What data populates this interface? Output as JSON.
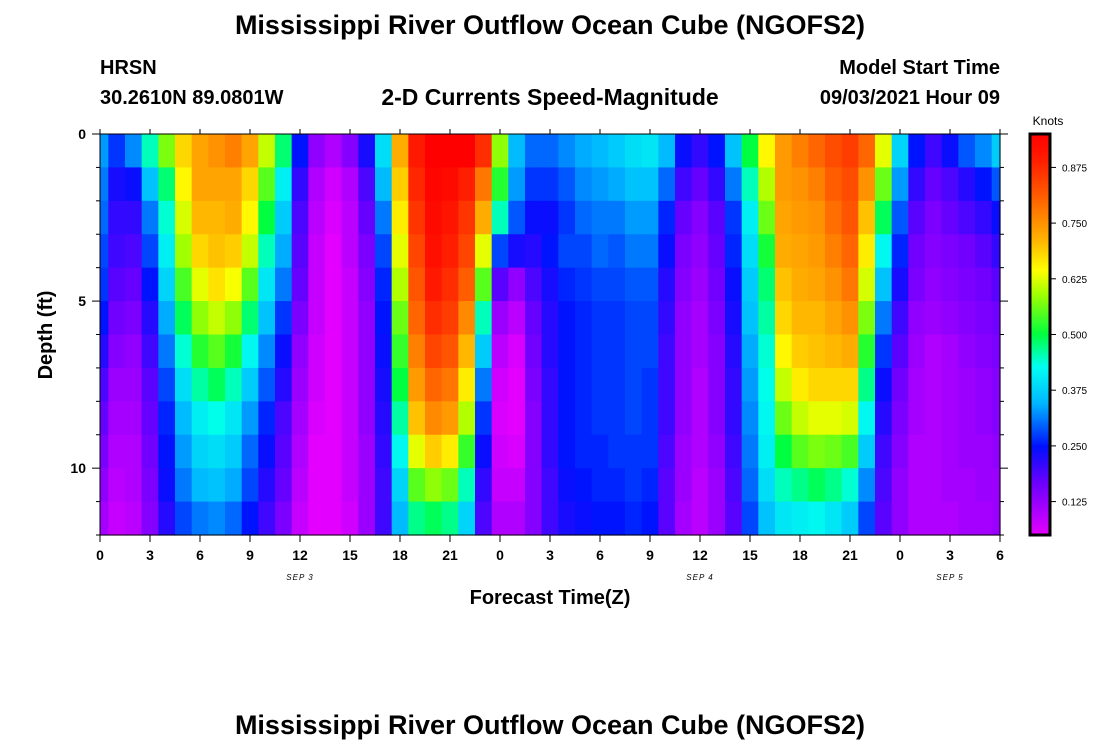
{
  "header": {
    "title": "Mississippi River Outflow Ocean Cube (NGOFS2)",
    "station": "HRSN",
    "coords": "30.2610N  89.0801W",
    "subtitle": "2-D Currents Speed-Magnitude",
    "model_start_label": "Model Start Time",
    "model_start_value": "09/03/2021 Hour 09"
  },
  "footer": {
    "title": "Mississippi River Outflow Ocean Cube (NGOFS2)"
  },
  "chart_data": {
    "type": "heatmap",
    "xlabel": "Forecast Time(Z)",
    "ylabel": "Depth (ft)",
    "x_range": [
      0,
      54
    ],
    "ylim": [
      0,
      12
    ],
    "y_inverted": true,
    "x_ticks": [
      {
        "hour": 0,
        "label": "0"
      },
      {
        "hour": 3,
        "label": "3"
      },
      {
        "hour": 6,
        "label": "6"
      },
      {
        "hour": 9,
        "label": "9"
      },
      {
        "hour": 12,
        "label": "12"
      },
      {
        "hour": 15,
        "label": "15"
      },
      {
        "hour": 18,
        "label": "18"
      },
      {
        "hour": 21,
        "label": "21"
      },
      {
        "hour": 24,
        "label": "0"
      },
      {
        "hour": 27,
        "label": "3"
      },
      {
        "hour": 30,
        "label": "6"
      },
      {
        "hour": 33,
        "label": "9"
      },
      {
        "hour": 36,
        "label": "12"
      },
      {
        "hour": 39,
        "label": "15"
      },
      {
        "hour": 42,
        "label": "18"
      },
      {
        "hour": 45,
        "label": "21"
      },
      {
        "hour": 48,
        "label": "0"
      },
      {
        "hour": 51,
        "label": "3"
      },
      {
        "hour": 54,
        "label": "6"
      }
    ],
    "y_ticks": [
      0,
      5,
      10
    ],
    "date_labels": [
      {
        "hour": 12,
        "label": "SEP 3"
      },
      {
        "hour": 36,
        "label": "SEP 4"
      },
      {
        "hour": 51,
        "label": "SEP 5"
      }
    ],
    "colorbar": {
      "unit": "Knots",
      "range": [
        0.05,
        0.95
      ],
      "ticks": [
        "0.125",
        "0.250",
        "0.375",
        "0.500",
        "0.625",
        "0.750",
        "0.875"
      ]
    },
    "depth_bins": 12,
    "time_step_hours": 1,
    "speed_knots_by_depth": [
      [
        0.33,
        0.27,
        0.32,
        0.45,
        0.57,
        0.68,
        0.73,
        0.75,
        0.77,
        0.73,
        0.61,
        0.48,
        0.25,
        0.13,
        0.1,
        0.14,
        0.23,
        0.39,
        0.72,
        0.9,
        0.95,
        0.95,
        0.95,
        0.87,
        0.58,
        0.35,
        0.3,
        0.3,
        0.32,
        0.34,
        0.35,
        0.37,
        0.39,
        0.4,
        0.35,
        0.24,
        0.21,
        0.25,
        0.36,
        0.5,
        0.65,
        0.74,
        0.77,
        0.8,
        0.83,
        0.85,
        0.8,
        0.63,
        0.38,
        0.25,
        0.2,
        0.24,
        0.29,
        0.32,
        0.37
      ],
      [
        0.31,
        0.23,
        0.24,
        0.36,
        0.48,
        0.65,
        0.73,
        0.73,
        0.73,
        0.68,
        0.55,
        0.41,
        0.21,
        0.1,
        0.07,
        0.1,
        0.19,
        0.35,
        0.69,
        0.88,
        0.94,
        0.93,
        0.89,
        0.78,
        0.52,
        0.33,
        0.27,
        0.27,
        0.29,
        0.32,
        0.33,
        0.34,
        0.36,
        0.36,
        0.3,
        0.2,
        0.17,
        0.21,
        0.31,
        0.45,
        0.6,
        0.74,
        0.75,
        0.77,
        0.81,
        0.83,
        0.75,
        0.56,
        0.33,
        0.21,
        0.17,
        0.19,
        0.22,
        0.25,
        0.29
      ],
      [
        0.3,
        0.21,
        0.21,
        0.31,
        0.44,
        0.62,
        0.71,
        0.71,
        0.72,
        0.65,
        0.5,
        0.37,
        0.19,
        0.09,
        0.06,
        0.09,
        0.17,
        0.31,
        0.66,
        0.86,
        0.93,
        0.91,
        0.86,
        0.72,
        0.45,
        0.29,
        0.24,
        0.24,
        0.27,
        0.3,
        0.31,
        0.31,
        0.33,
        0.33,
        0.26,
        0.17,
        0.14,
        0.18,
        0.27,
        0.41,
        0.56,
        0.73,
        0.74,
        0.75,
        0.79,
        0.82,
        0.7,
        0.49,
        0.29,
        0.18,
        0.15,
        0.17,
        0.19,
        0.21,
        0.24
      ],
      [
        0.28,
        0.2,
        0.19,
        0.28,
        0.41,
        0.59,
        0.68,
        0.7,
        0.69,
        0.61,
        0.45,
        0.34,
        0.18,
        0.08,
        0.05,
        0.09,
        0.15,
        0.28,
        0.63,
        0.84,
        0.92,
        0.89,
        0.84,
        0.63,
        0.28,
        0.23,
        0.22,
        0.25,
        0.28,
        0.28,
        0.3,
        0.29,
        0.31,
        0.31,
        0.24,
        0.15,
        0.13,
        0.17,
        0.26,
        0.39,
        0.51,
        0.72,
        0.73,
        0.74,
        0.77,
        0.8,
        0.66,
        0.42,
        0.26,
        0.16,
        0.14,
        0.15,
        0.16,
        0.18,
        0.21
      ],
      [
        0.27,
        0.18,
        0.17,
        0.25,
        0.38,
        0.54,
        0.63,
        0.67,
        0.64,
        0.55,
        0.4,
        0.31,
        0.17,
        0.08,
        0.05,
        0.08,
        0.14,
        0.26,
        0.6,
        0.82,
        0.9,
        0.87,
        0.81,
        0.55,
        0.18,
        0.13,
        0.19,
        0.23,
        0.26,
        0.27,
        0.28,
        0.28,
        0.29,
        0.29,
        0.22,
        0.14,
        0.12,
        0.16,
        0.24,
        0.37,
        0.48,
        0.7,
        0.72,
        0.73,
        0.75,
        0.78,
        0.62,
        0.36,
        0.23,
        0.15,
        0.13,
        0.14,
        0.15,
        0.16,
        0.18
      ],
      [
        0.25,
        0.16,
        0.15,
        0.22,
        0.34,
        0.49,
        0.58,
        0.61,
        0.58,
        0.48,
        0.36,
        0.27,
        0.15,
        0.08,
        0.05,
        0.08,
        0.13,
        0.25,
        0.56,
        0.8,
        0.87,
        0.85,
        0.76,
        0.45,
        0.12,
        0.09,
        0.17,
        0.22,
        0.25,
        0.26,
        0.27,
        0.27,
        0.28,
        0.28,
        0.21,
        0.13,
        0.11,
        0.15,
        0.23,
        0.36,
        0.46,
        0.68,
        0.71,
        0.71,
        0.73,
        0.75,
        0.57,
        0.31,
        0.2,
        0.13,
        0.12,
        0.13,
        0.14,
        0.15,
        0.16
      ],
      [
        0.22,
        0.14,
        0.13,
        0.2,
        0.31,
        0.44,
        0.52,
        0.55,
        0.51,
        0.42,
        0.32,
        0.24,
        0.13,
        0.07,
        0.05,
        0.08,
        0.13,
        0.24,
        0.53,
        0.77,
        0.84,
        0.82,
        0.71,
        0.37,
        0.09,
        0.06,
        0.16,
        0.22,
        0.25,
        0.26,
        0.27,
        0.27,
        0.28,
        0.28,
        0.2,
        0.13,
        0.11,
        0.14,
        0.22,
        0.34,
        0.44,
        0.65,
        0.69,
        0.7,
        0.71,
        0.72,
        0.52,
        0.27,
        0.18,
        0.12,
        0.1,
        0.11,
        0.13,
        0.14,
        0.15
      ],
      [
        0.19,
        0.12,
        0.12,
        0.18,
        0.28,
        0.39,
        0.46,
        0.49,
        0.45,
        0.37,
        0.29,
        0.22,
        0.12,
        0.07,
        0.05,
        0.08,
        0.13,
        0.23,
        0.5,
        0.74,
        0.8,
        0.78,
        0.66,
        0.31,
        0.07,
        0.04,
        0.15,
        0.21,
        0.25,
        0.26,
        0.27,
        0.27,
        0.28,
        0.27,
        0.2,
        0.13,
        0.1,
        0.14,
        0.21,
        0.33,
        0.43,
        0.61,
        0.66,
        0.68,
        0.68,
        0.68,
        0.47,
        0.24,
        0.16,
        0.11,
        0.1,
        0.11,
        0.12,
        0.13,
        0.14
      ],
      [
        0.17,
        0.11,
        0.11,
        0.17,
        0.26,
        0.35,
        0.41,
        0.43,
        0.4,
        0.33,
        0.26,
        0.19,
        0.11,
        0.06,
        0.05,
        0.08,
        0.13,
        0.22,
        0.46,
        0.7,
        0.76,
        0.74,
        0.6,
        0.27,
        0.06,
        0.05,
        0.14,
        0.21,
        0.25,
        0.26,
        0.27,
        0.27,
        0.28,
        0.27,
        0.2,
        0.13,
        0.1,
        0.14,
        0.21,
        0.32,
        0.42,
        0.56,
        0.61,
        0.63,
        0.63,
        0.62,
        0.42,
        0.22,
        0.15,
        0.11,
        0.1,
        0.11,
        0.12,
        0.13,
        0.14
      ],
      [
        0.15,
        0.1,
        0.1,
        0.16,
        0.25,
        0.33,
        0.38,
        0.39,
        0.37,
        0.3,
        0.24,
        0.18,
        0.1,
        0.05,
        0.04,
        0.08,
        0.12,
        0.21,
        0.42,
        0.63,
        0.69,
        0.66,
        0.53,
        0.24,
        0.07,
        0.06,
        0.14,
        0.21,
        0.25,
        0.26,
        0.26,
        0.27,
        0.27,
        0.27,
        0.19,
        0.12,
        0.1,
        0.13,
        0.2,
        0.31,
        0.41,
        0.5,
        0.55,
        0.57,
        0.56,
        0.54,
        0.37,
        0.2,
        0.14,
        0.1,
        0.1,
        0.11,
        0.12,
        0.12,
        0.13
      ],
      [
        0.13,
        0.09,
        0.1,
        0.15,
        0.24,
        0.31,
        0.35,
        0.36,
        0.34,
        0.28,
        0.22,
        0.17,
        0.09,
        0.05,
        0.04,
        0.08,
        0.12,
        0.2,
        0.38,
        0.55,
        0.58,
        0.56,
        0.45,
        0.21,
        0.08,
        0.08,
        0.14,
        0.2,
        0.24,
        0.25,
        0.26,
        0.26,
        0.27,
        0.26,
        0.18,
        0.12,
        0.09,
        0.12,
        0.19,
        0.3,
        0.39,
        0.45,
        0.47,
        0.49,
        0.47,
        0.44,
        0.32,
        0.19,
        0.13,
        0.1,
        0.1,
        0.11,
        0.11,
        0.12,
        0.12
      ],
      [
        0.11,
        0.08,
        0.09,
        0.14,
        0.22,
        0.28,
        0.31,
        0.32,
        0.3,
        0.25,
        0.2,
        0.15,
        0.08,
        0.04,
        0.04,
        0.07,
        0.12,
        0.2,
        0.35,
        0.47,
        0.49,
        0.47,
        0.38,
        0.19,
        0.1,
        0.1,
        0.14,
        0.2,
        0.23,
        0.24,
        0.25,
        0.25,
        0.26,
        0.25,
        0.18,
        0.11,
        0.09,
        0.12,
        0.18,
        0.28,
        0.36,
        0.4,
        0.41,
        0.42,
        0.4,
        0.37,
        0.28,
        0.18,
        0.13,
        0.1,
        0.1,
        0.1,
        0.11,
        0.11,
        0.12
      ]
    ]
  }
}
